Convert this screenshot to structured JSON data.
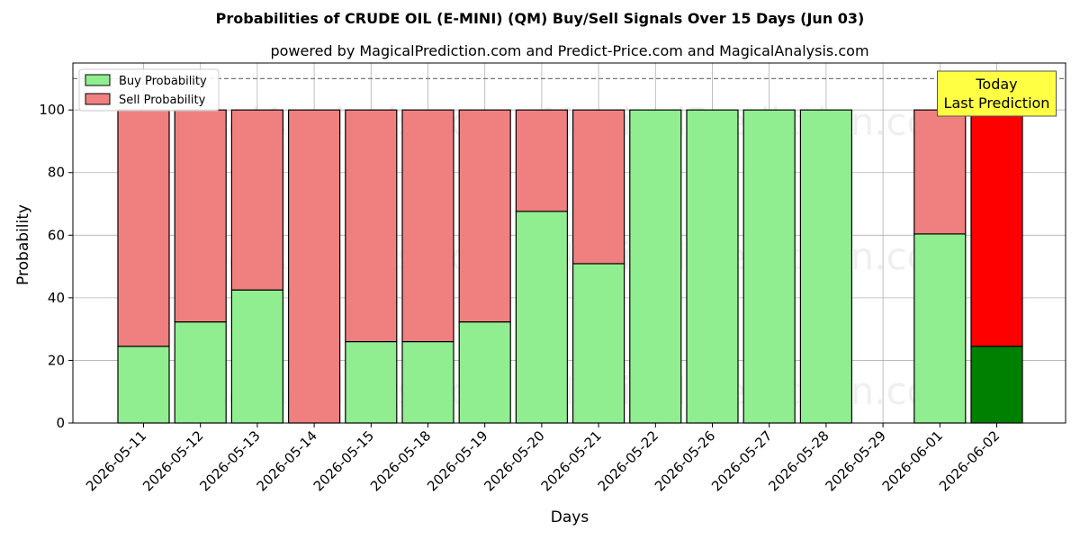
{
  "chart_data": {
    "type": "bar",
    "stacked": true,
    "title": "Probabilities of CRUDE OIL (E-MINI) (QM) Buy/Sell Signals Over 15 Days (Jun 03)",
    "subtitle": "powered by MagicalPrediction.com and Predict-Price.com and MagicalAnalysis.com",
    "xlabel": "Days",
    "ylabel": "Probability",
    "ylim": [
      0,
      115
    ],
    "yticks": [
      0,
      20,
      40,
      60,
      80,
      100
    ],
    "grid": true,
    "reference_line": 110,
    "legend_position": "top-left",
    "categories": [
      "2026-05-11",
      "2026-05-12",
      "2026-05-13",
      "2026-05-14",
      "2026-05-15",
      "2026-05-18",
      "2026-05-19",
      "2026-05-20",
      "2026-05-21",
      "2026-05-22",
      "2026-05-26",
      "2026-05-27",
      "2026-05-28",
      "2026-05-29",
      "2026-06-01",
      "2026-06-02"
    ],
    "series": [
      {
        "name": "Buy Probability",
        "color": "#90ee90",
        "highlight_color": "#008000",
        "values": [
          24.5,
          32.3,
          42.5,
          0,
          26,
          26,
          32.3,
          67.6,
          50.9,
          100,
          100,
          100,
          100,
          0,
          60.4,
          24.5
        ]
      },
      {
        "name": "Sell Probability",
        "color": "#f08080",
        "highlight_color": "#ff0000",
        "values": [
          75.5,
          67.7,
          57.5,
          100,
          74,
          74,
          67.7,
          32.4,
          49.1,
          0,
          0,
          0,
          0,
          0,
          39.6,
          75.5
        ]
      }
    ],
    "highlight_category": "2026-06-02",
    "annotation": {
      "lines": [
        "Today",
        "Last Prediction"
      ],
      "background": "#ffff44"
    },
    "watermarks": [
      "MagicalAnalysis.com",
      "MagicalPrediction.com"
    ]
  }
}
